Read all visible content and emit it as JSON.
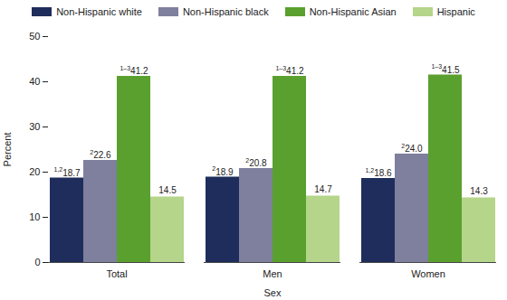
{
  "chart_data": {
    "type": "bar",
    "categories": [
      "Total",
      "Men",
      "Women"
    ],
    "x_label": "Sex",
    "y_label": "Percent",
    "ylim": [
      0,
      50
    ],
    "yticks": [
      0,
      10,
      20,
      30,
      40,
      50
    ],
    "legend": "top",
    "data_labels": true,
    "grid": false,
    "series": [
      {
        "name": "Non-Hispanic white",
        "color": "#1f2d5c",
        "values": [
          18.7,
          18.9,
          18.6
        ],
        "label_notes": [
          "1,2",
          "2",
          "1,2"
        ]
      },
      {
        "name": "Non-Hispanic black",
        "color": "#7f7f9e",
        "values": [
          22.6,
          20.8,
          24.0
        ],
        "value_labels": [
          "22.6",
          "20.8",
          "24.0"
        ],
        "label_notes": [
          "2",
          "2",
          "2"
        ]
      },
      {
        "name": "Non-Hispanic Asian",
        "color": "#5aa02e",
        "values": [
          41.2,
          41.2,
          41.5
        ],
        "label_notes": [
          "1–3",
          "1–3",
          "1–3"
        ]
      },
      {
        "name": "Hispanic",
        "color": "#b5d58a",
        "values": [
          14.5,
          14.7,
          14.3
        ]
      }
    ]
  }
}
